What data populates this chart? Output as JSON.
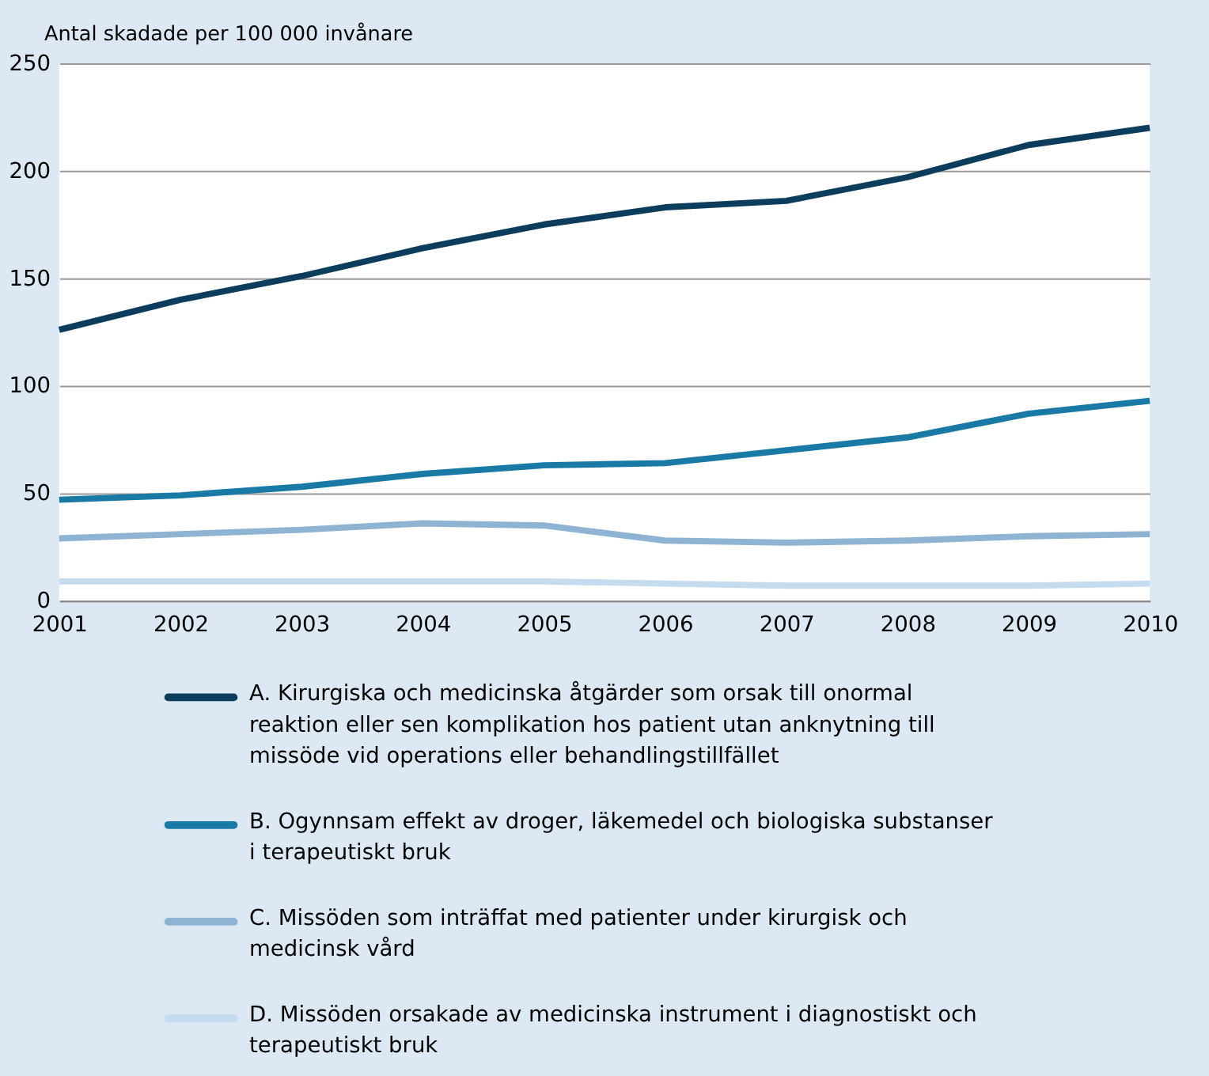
{
  "chart_data": {
    "type": "line",
    "ylabel": "Antal skadade per 100 000 invånare",
    "x": [
      2001,
      2002,
      2003,
      2004,
      2005,
      2006,
      2007,
      2008,
      2009,
      2010
    ],
    "xlim": [
      2001,
      2010
    ],
    "xticks": [
      2001,
      2002,
      2003,
      2004,
      2005,
      2006,
      2007,
      2008,
      2009,
      2010
    ],
    "ylim": [
      0,
      250
    ],
    "yticks": [
      0,
      50,
      100,
      150,
      200,
      250
    ],
    "grid": "y",
    "legend": "bottom",
    "marker": "none",
    "line_style": "solid",
    "series": [
      {
        "name": "A. Kirurgiska och medicinska åtgärder som orsak till onormal reaktion eller sen komplikation hos patient utan anknytning till missöde vid operations eller behandlingstillfället",
        "color": "#0d3d5c",
        "values": [
          126,
          140,
          151,
          164,
          175,
          183,
          186,
          197,
          212,
          220
        ]
      },
      {
        "name": "B. Ogynnsam effekt av droger, läkemedel och biologiska substanser i terapeutiskt bruk",
        "color": "#1a7aa6",
        "values": [
          47,
          49,
          53,
          59,
          63,
          64,
          70,
          76,
          87,
          93
        ]
      },
      {
        "name": "C. Missöden som inträffat med patienter under kirurgisk och medicinsk vård",
        "color": "#8fb4d3",
        "values": [
          29,
          31,
          33,
          36,
          35,
          28,
          27,
          28,
          30,
          31
        ]
      },
      {
        "name": "D. Missöden orsakade av medicinska instrument i diagnostiskt och terapeutiskt bruk",
        "color": "#c5dcee",
        "values": [
          9,
          9,
          9,
          9,
          9,
          8,
          7,
          7,
          7,
          8
        ]
      }
    ]
  }
}
